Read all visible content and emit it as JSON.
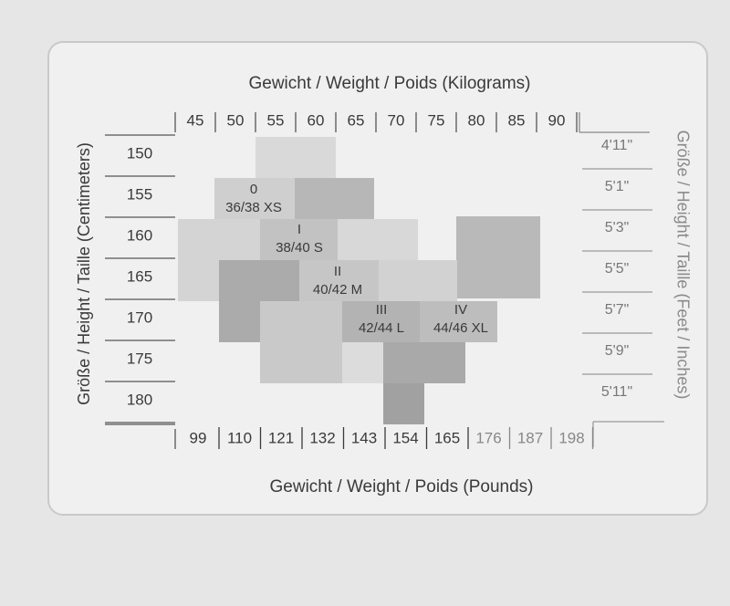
{
  "top_title": "Gewicht / Weight / Poids (Kilograms)",
  "kilograms": [
    "45",
    "50",
    "55",
    "60",
    "65",
    "70",
    "75",
    "80",
    "85",
    "90"
  ],
  "left_label": "Größe / Height / Taille (Centimeters)",
  "centimeters": [
    "150",
    "155",
    "160",
    "165",
    "170",
    "175",
    "180"
  ],
  "right_label": "Größe / Height / Taille (Feet / Inches)",
  "feet_inches": [
    "4'11\"",
    "5'1\"",
    "5'3\"",
    "5'5\"",
    "5'7\"",
    "5'9\"",
    "5'11\""
  ],
  "pounds": [
    "99",
    "110",
    "121",
    "132",
    "143",
    "154",
    "165",
    "176",
    "187",
    "198"
  ],
  "bottom_title": "Gewicht / Weight / Poids (Pounds)",
  "sizes": [
    {
      "code": "0",
      "label": "36/38 XS"
    },
    {
      "code": "I",
      "label": "38/40 S"
    },
    {
      "code": "II",
      "label": "40/42 M"
    },
    {
      "code": "III",
      "label": "42/44 L"
    },
    {
      "code": "IV",
      "label": "44/46 XL"
    }
  ]
}
